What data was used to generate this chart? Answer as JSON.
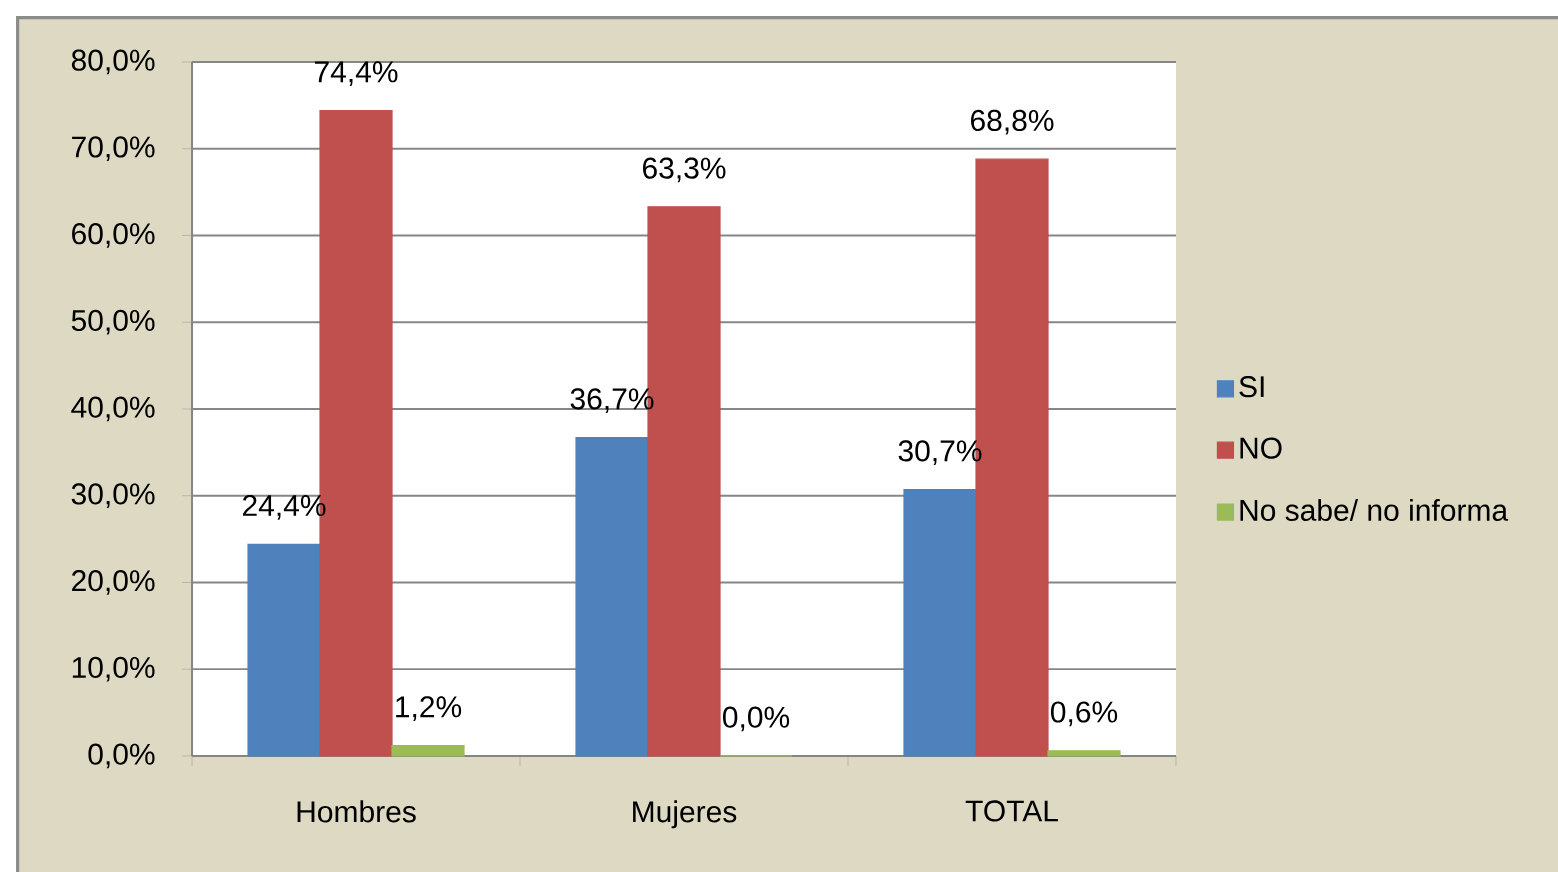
{
  "chart_data": {
    "type": "bar",
    "categories": [
      "Hombres",
      "Mujeres",
      "TOTAL"
    ],
    "series": [
      {
        "name": "SI",
        "color": "#4f81bd",
        "values": [
          24.4,
          36.7,
          30.7
        ],
        "value_labels": [
          "24,4%",
          "36,7%",
          "30,7%"
        ]
      },
      {
        "name": "NO",
        "color": "#c0504d",
        "values": [
          74.4,
          63.3,
          68.8
        ],
        "value_labels": [
          "74,4%",
          "63,3%",
          "68,8%"
        ]
      },
      {
        "name": "No sabe/ no informa",
        "color": "#9bbb59",
        "values": [
          1.2,
          0.0,
          0.6
        ],
        "value_labels": [
          "1,2%",
          "0,0%",
          "0,6%"
        ]
      }
    ],
    "ylim": [
      0,
      80
    ],
    "yticks": [
      {
        "value": 0,
        "label": "0,0%"
      },
      {
        "value": 10,
        "label": "10,0%"
      },
      {
        "value": 20,
        "label": "20,0%"
      },
      {
        "value": 30,
        "label": "30,0%"
      },
      {
        "value": 40,
        "label": "40,0%"
      },
      {
        "value": 50,
        "label": "50,0%"
      },
      {
        "value": 60,
        "label": "60,0%"
      },
      {
        "value": 70,
        "label": "70,0%"
      },
      {
        "value": 80,
        "label": "80,0%"
      }
    ],
    "grid": "y",
    "legend": "right"
  }
}
